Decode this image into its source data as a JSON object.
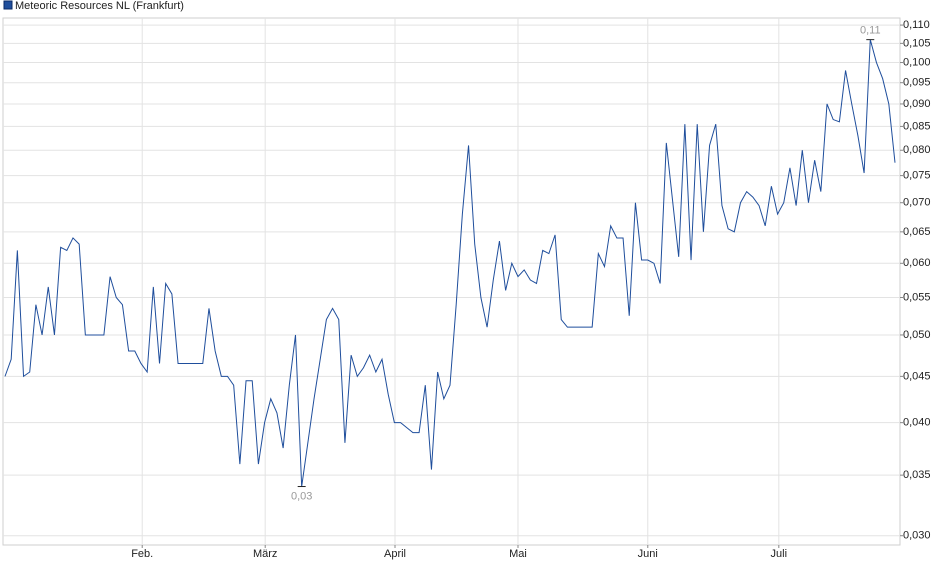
{
  "chart_data": {
    "type": "line",
    "log_y": true,
    "grid": true,
    "legend": "top-left",
    "series": [
      {
        "name": "Meteoric Resources NL (Frankfurt)",
        "color": "#1f4e9c",
        "values": [
          0.045,
          0.047,
          0.062,
          0.045,
          0.0455,
          0.054,
          0.05,
          0.0565,
          0.05,
          0.0625,
          0.062,
          0.064,
          0.063,
          0.05,
          0.05,
          0.05,
          0.05,
          0.058,
          0.055,
          0.054,
          0.048,
          0.048,
          0.0465,
          0.0455,
          0.0565,
          0.0465,
          0.057,
          0.0555,
          0.0465,
          0.0465,
          0.0465,
          0.0465,
          0.0465,
          0.0535,
          0.048,
          0.045,
          0.045,
          0.044,
          0.036,
          0.0445,
          0.0445,
          0.036,
          0.04,
          0.0425,
          0.041,
          0.0375,
          0.044,
          0.05,
          0.034,
          0.038,
          0.0425,
          0.047,
          0.052,
          0.0535,
          0.052,
          0.038,
          0.0475,
          0.045,
          0.046,
          0.0475,
          0.0455,
          0.047,
          0.043,
          0.04,
          0.04,
          0.0395,
          0.039,
          0.039,
          0.044,
          0.0355,
          0.0455,
          0.0425,
          0.044,
          0.054,
          0.068,
          0.081,
          0.063,
          0.055,
          0.051,
          0.0575,
          0.0635,
          0.056,
          0.06,
          0.058,
          0.059,
          0.0575,
          0.057,
          0.062,
          0.0615,
          0.0645,
          0.052,
          0.051,
          0.051,
          0.051,
          0.051,
          0.051,
          0.0615,
          0.0595,
          0.066,
          0.064,
          0.064,
          0.0525,
          0.07,
          0.0605,
          0.0605,
          0.06,
          0.057,
          0.0815,
          0.0705,
          0.061,
          0.0855,
          0.0605,
          0.0855,
          0.065,
          0.081,
          0.0855,
          0.0695,
          0.0655,
          0.065,
          0.07,
          0.072,
          0.071,
          0.0695,
          0.066,
          0.073,
          0.068,
          0.07,
          0.0765,
          0.0695,
          0.08,
          0.07,
          0.078,
          0.072,
          0.09,
          0.0865,
          0.086,
          0.098,
          0.09,
          0.083,
          0.0755,
          0.106,
          0.1,
          0.096,
          0.09,
          0.0775
        ]
      }
    ],
    "max_label": "0,11",
    "min_label": "0,03",
    "xlim": [
      0,
      144
    ],
    "xticks": [
      {
        "value": 22.2,
        "label": "Feb."
      },
      {
        "value": 42.1,
        "label": "März"
      },
      {
        "value": 63.1,
        "label": "April"
      },
      {
        "value": 83.0,
        "label": "Mai"
      },
      {
        "value": 104.0,
        "label": "Juni"
      },
      {
        "value": 125.2,
        "label": "Juli"
      }
    ],
    "ylim": [
      0.0293,
      0.112
    ],
    "yticks": [
      {
        "value": 0.03,
        "label": "0,030"
      },
      {
        "value": 0.035,
        "label": "0,035"
      },
      {
        "value": 0.04,
        "label": "0,040"
      },
      {
        "value": 0.045,
        "label": "0,045"
      },
      {
        "value": 0.05,
        "label": "0,050"
      },
      {
        "value": 0.055,
        "label": "0,055"
      },
      {
        "value": 0.06,
        "label": "0,060"
      },
      {
        "value": 0.065,
        "label": "0,065"
      },
      {
        "value": 0.07,
        "label": "0,070"
      },
      {
        "value": 0.075,
        "label": "0,075"
      },
      {
        "value": 0.08,
        "label": "0,080"
      },
      {
        "value": 0.085,
        "label": "0,085"
      },
      {
        "value": 0.09,
        "label": "0,090"
      },
      {
        "value": 0.095,
        "label": "0,095"
      },
      {
        "value": 0.1,
        "label": "0,100"
      },
      {
        "value": 0.105,
        "label": "0,105"
      },
      {
        "value": 0.11,
        "label": "0,110"
      }
    ]
  }
}
